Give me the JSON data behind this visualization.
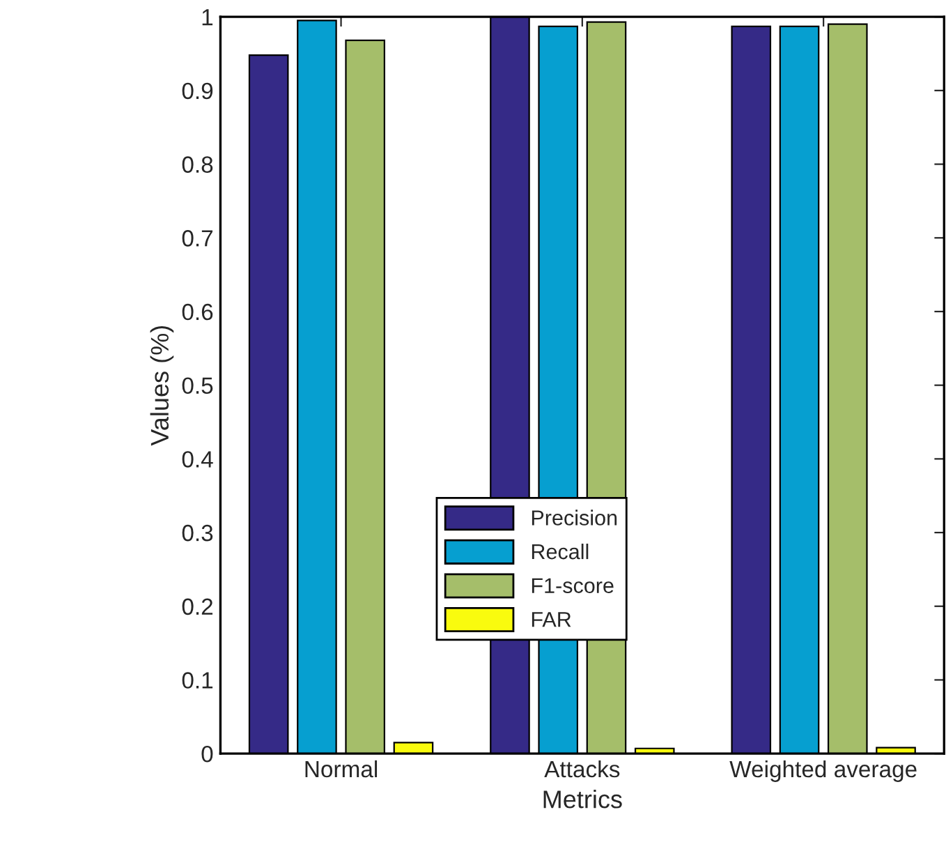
{
  "chart_data": {
    "type": "bar",
    "xlabel": "Metrics",
    "ylabel": "Values (%)",
    "categories": [
      "Normal",
      "Attacks",
      "Weighted average"
    ],
    "series": [
      {
        "name": "Precision",
        "color": "#352a87",
        "values": [
          0.948,
          1.0,
          0.987
        ]
      },
      {
        "name": "Recall",
        "color": "#069fd0",
        "values": [
          0.995,
          0.987,
          0.987
        ]
      },
      {
        "name": "F1-score",
        "color": "#a5be6a",
        "values": [
          0.968,
          0.993,
          0.99
        ]
      },
      {
        "name": "FAR",
        "color": "#f9fb0e",
        "values": [
          0.015,
          0.007,
          0.008
        ]
      }
    ],
    "ylim": [
      0,
      1
    ],
    "yticks": [
      0,
      0.1,
      0.2,
      0.3,
      0.4,
      0.5,
      0.6,
      0.7,
      0.8,
      0.9,
      1
    ],
    "grid": false,
    "legend": "bottom"
  }
}
